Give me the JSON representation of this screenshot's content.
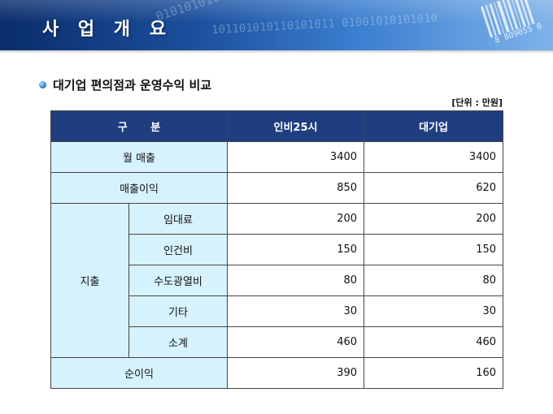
{
  "header": {
    "title": "사 업 개 요",
    "binary_text_1": "101101010110101011 01001010101010",
    "binary_text_2": "0101010101",
    "barcode_number": "8 809055 0"
  },
  "section": {
    "subtitle": "대기업 편의점과 운영수익 비교",
    "unit": "[단위 : 만원]"
  },
  "table": {
    "headers": [
      "구 분",
      "인비25시",
      "대기업"
    ],
    "rows": [
      {
        "label": "월 매출",
        "inbi": "3400",
        "major": "3400"
      },
      {
        "label": "매출이익",
        "inbi": "850",
        "major": "620"
      }
    ],
    "expense": {
      "group_label": "지출",
      "items": [
        {
          "label": "임대료",
          "inbi": "200",
          "major": "200"
        },
        {
          "label": "인건비",
          "inbi": "150",
          "major": "150"
        },
        {
          "label": "수도광열비",
          "inbi": "80",
          "major": "80"
        },
        {
          "label": "기타",
          "inbi": "30",
          "major": "30"
        },
        {
          "label": "소계",
          "inbi": "460",
          "major": "460"
        }
      ]
    },
    "net": {
      "label": "순이익",
      "inbi": "390",
      "major": "160"
    }
  },
  "colors": {
    "header_bg": "#1f3e80",
    "label_bg": "#d6f2fc"
  }
}
